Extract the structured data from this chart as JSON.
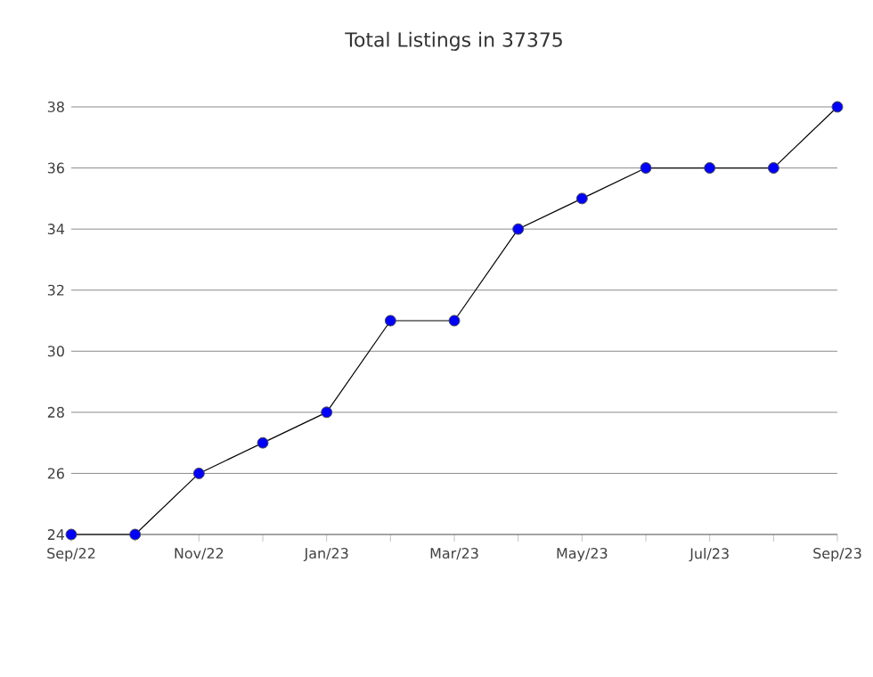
{
  "chart_data": {
    "type": "line",
    "title": "Total Listings in 37375",
    "categories": [
      "Sep/22",
      null,
      "Nov/22",
      null,
      "Jan/23",
      null,
      "Mar/23",
      null,
      "May/23",
      null,
      "Jul/23",
      null,
      "Sep/23"
    ],
    "series": [
      {
        "color": "#0000ff",
        "values": [
          24,
          24,
          26,
          27,
          28,
          31,
          31,
          34,
          35,
          36,
          36,
          36,
          38
        ]
      }
    ],
    "ylim": [
      24,
      38
    ],
    "yticks": [
      24,
      26,
      28,
      30,
      32,
      34,
      36,
      38
    ],
    "grid": "y",
    "marker": "circle",
    "line_style": "solid"
  }
}
